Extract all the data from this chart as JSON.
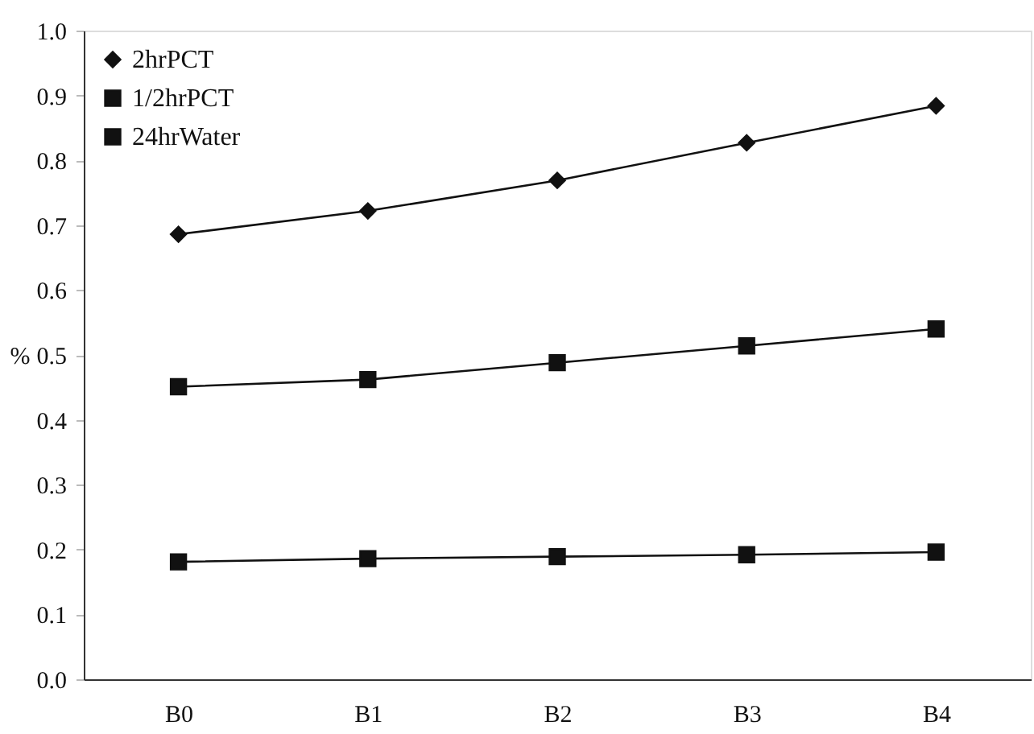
{
  "chart_data": {
    "type": "line",
    "ylabel": "%",
    "categories": [
      "B0",
      "B1",
      "B2",
      "B3",
      "B4"
    ],
    "series": [
      {
        "name": "2hrPCT",
        "color": "#111111",
        "marker": "diamond",
        "values": [
          0.686,
          0.722,
          0.769,
          0.827,
          0.884
        ]
      },
      {
        "name": "1/2hrPCT",
        "color": "#111111",
        "marker": "square",
        "values": [
          0.451,
          0.462,
          0.488,
          0.514,
          0.54
        ]
      },
      {
        "name": "24hrWater",
        "color": "#111111",
        "marker": "square",
        "values": [
          0.181,
          0.186,
          0.189,
          0.192,
          0.196
        ]
      }
    ],
    "ylim": [
      0.0,
      1.0
    ],
    "yticks": [
      {
        "value": 0,
        "label": "0.0"
      },
      0.1,
      0.2,
      0.3,
      0.4,
      0.5,
      0.6,
      0.7,
      0.8,
      0.9,
      {
        "value": 1,
        "label": "1.0"
      }
    ],
    "grid": false,
    "legend": "top left",
    "line_style": "solid"
  }
}
